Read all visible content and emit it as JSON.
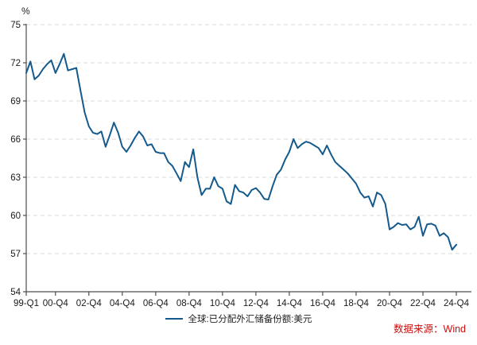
{
  "chart": {
    "unit": "%",
    "legend": "全球:已分配外汇储备份额:美元",
    "source": "数据来源：Wind"
  },
  "chart_data": {
    "type": "line",
    "title": "",
    "xlabel": "",
    "ylabel": "%",
    "ylim": [
      54,
      75
    ],
    "yticks": [
      54,
      57,
      60,
      63,
      66,
      69,
      72,
      75
    ],
    "grid": "horizontal-dashed",
    "grid_color": "#d9d9d9",
    "axis_color": "#4d4d4d",
    "legend_position": "bottom-center",
    "frequency": "quarterly",
    "x_start": "99-Q1",
    "x_end": "24-Q4",
    "x_tick_labels": [
      {
        "index": 0,
        "label": "99-Q1"
      },
      {
        "index": 7,
        "label": "00-Q4"
      },
      {
        "index": 15,
        "label": "02-Q4"
      },
      {
        "index": 23,
        "label": "04-Q4"
      },
      {
        "index": 31,
        "label": "06-Q4"
      },
      {
        "index": 39,
        "label": "08-Q4"
      },
      {
        "index": 47,
        "label": "10-Q4"
      },
      {
        "index": 55,
        "label": "12-Q4"
      },
      {
        "index": 63,
        "label": "14-Q4"
      },
      {
        "index": 71,
        "label": "16-Q4"
      },
      {
        "index": 79,
        "label": "18-Q4"
      },
      {
        "index": 87,
        "label": "20-Q4"
      },
      {
        "index": 95,
        "label": "22-Q4"
      },
      {
        "index": 103,
        "label": "24-Q4"
      }
    ],
    "series": [
      {
        "name": "全球:已分配外汇储备份额:美元",
        "color": "#155a8c",
        "values": [
          71.2,
          72.1,
          70.7,
          71.0,
          71.5,
          71.9,
          72.2,
          71.2,
          71.9,
          72.7,
          71.4,
          71.5,
          71.6,
          69.8,
          68.1,
          67.0,
          66.5,
          66.4,
          66.6,
          65.4,
          66.3,
          67.3,
          66.5,
          65.4,
          65.0,
          65.5,
          66.1,
          66.6,
          66.2,
          65.5,
          65.6,
          65.0,
          64.9,
          64.9,
          64.2,
          63.9,
          63.3,
          62.7,
          64.2,
          63.8,
          65.2,
          63.0,
          61.6,
          62.1,
          62.1,
          63.0,
          62.3,
          62.1,
          61.1,
          60.9,
          62.4,
          61.9,
          61.8,
          61.5,
          62.0,
          62.15,
          61.8,
          61.3,
          61.25,
          62.3,
          63.2,
          63.6,
          64.4,
          65.0,
          66.0,
          65.3,
          65.6,
          65.8,
          65.7,
          65.5,
          65.3,
          64.8,
          65.5,
          64.8,
          64.2,
          63.9,
          63.6,
          63.3,
          62.9,
          62.5,
          61.8,
          61.4,
          61.5,
          60.7,
          61.8,
          61.6,
          60.9,
          58.9,
          59.1,
          59.4,
          59.25,
          59.3,
          58.9,
          59.1,
          59.9,
          58.4,
          59.3,
          59.35,
          59.2,
          58.4,
          58.6,
          58.3,
          57.3,
          57.7
        ]
      }
    ]
  }
}
